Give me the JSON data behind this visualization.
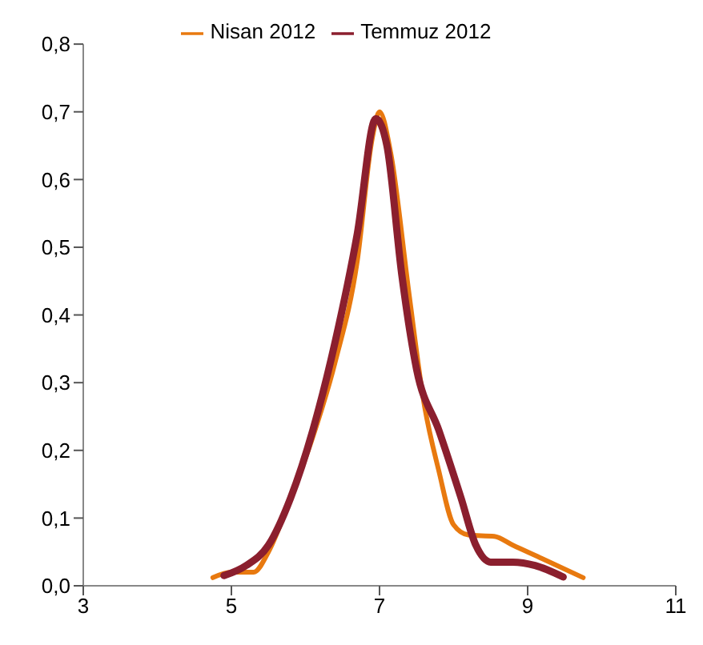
{
  "chart_data": {
    "type": "line",
    "xlim": [
      3,
      11
    ],
    "xticks": [
      3,
      5,
      7,
      9,
      11
    ],
    "ylim": [
      0,
      0.8
    ],
    "yticks": [
      {
        "value": 0,
        "label": "0,0"
      },
      {
        "value": 0.1,
        "label": "0,1"
      },
      {
        "value": 0.2,
        "label": "0,2"
      },
      {
        "value": 0.3,
        "label": "0,3"
      },
      {
        "value": 0.4,
        "label": "0,4"
      },
      {
        "value": 0.5,
        "label": "0,5"
      },
      {
        "value": 0.6,
        "label": "0,6"
      },
      {
        "value": 0.7,
        "label": "0,7"
      },
      {
        "value": 0.8,
        "label": "0,8"
      }
    ],
    "grid": false,
    "legend": "top",
    "marker": "none",
    "line_style": "solid",
    "series": [
      {
        "name": "Nisan 2012",
        "color": "#e8790f",
        "x": [
          4.75,
          5.0,
          5.3,
          5.5,
          5.8,
          6.1,
          6.4,
          6.7,
          6.9,
          7.0,
          7.15,
          7.4,
          7.6,
          7.8,
          8.0,
          8.2,
          8.55,
          8.8,
          9.2,
          9.75
        ],
        "values": [
          0.012,
          0.02,
          0.02,
          0.05,
          0.13,
          0.22,
          0.33,
          0.48,
          0.66,
          0.7,
          0.64,
          0.43,
          0.27,
          0.17,
          0.09,
          0.075,
          0.073,
          0.06,
          0.04,
          0.012
        ]
      },
      {
        "name": "Temmuz 2012",
        "color": "#8b1f2e",
        "x": [
          4.9,
          5.2,
          5.5,
          5.8,
          6.1,
          6.4,
          6.7,
          6.95,
          7.1,
          7.3,
          7.5,
          7.8,
          8.1,
          8.3,
          8.5,
          8.8,
          9.1,
          9.48
        ],
        "values": [
          0.015,
          0.03,
          0.06,
          0.13,
          0.23,
          0.36,
          0.52,
          0.69,
          0.65,
          0.46,
          0.32,
          0.23,
          0.13,
          0.06,
          0.035,
          0.035,
          0.03,
          0.013
        ]
      }
    ]
  }
}
